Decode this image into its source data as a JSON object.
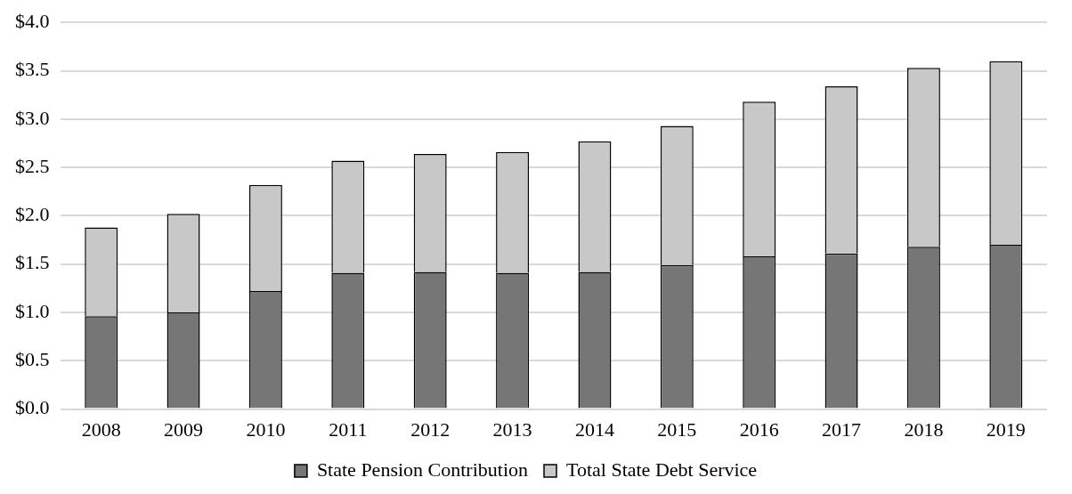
{
  "chart_data": {
    "type": "bar",
    "stacked": true,
    "categories": [
      "2008",
      "2009",
      "2010",
      "2011",
      "2012",
      "2013",
      "2014",
      "2015",
      "2016",
      "2017",
      "2018",
      "2019"
    ],
    "series": [
      {
        "name": "State Pension Contribution",
        "color": "#767676",
        "values": [
          0.96,
          1.0,
          1.22,
          1.41,
          1.42,
          1.41,
          1.42,
          1.49,
          1.58,
          1.61,
          1.68,
          1.7
        ]
      },
      {
        "name": "Total State Debt Service",
        "color": "#c8c8c8",
        "values": [
          0.92,
          1.02,
          1.1,
          1.16,
          1.22,
          1.25,
          1.35,
          1.44,
          1.6,
          1.73,
          1.85,
          1.9
        ]
      }
    ],
    "ylim": [
      0,
      4
    ],
    "yticks": [
      {
        "value": 0,
        "label": "$0.0"
      },
      {
        "value": 0.5,
        "label": "$0.5"
      },
      {
        "value": 1,
        "label": "$1.0"
      },
      {
        "value": 1.5,
        "label": "$1.5"
      },
      {
        "value": 2,
        "label": "$2.0"
      },
      {
        "value": 2.5,
        "label": "$2.5"
      },
      {
        "value": 3,
        "label": "$3.0"
      },
      {
        "value": 3.5,
        "label": "$3.5"
      },
      {
        "value": 4,
        "label": "$4.0"
      }
    ],
    "grid": "y",
    "legend": "bottom"
  }
}
